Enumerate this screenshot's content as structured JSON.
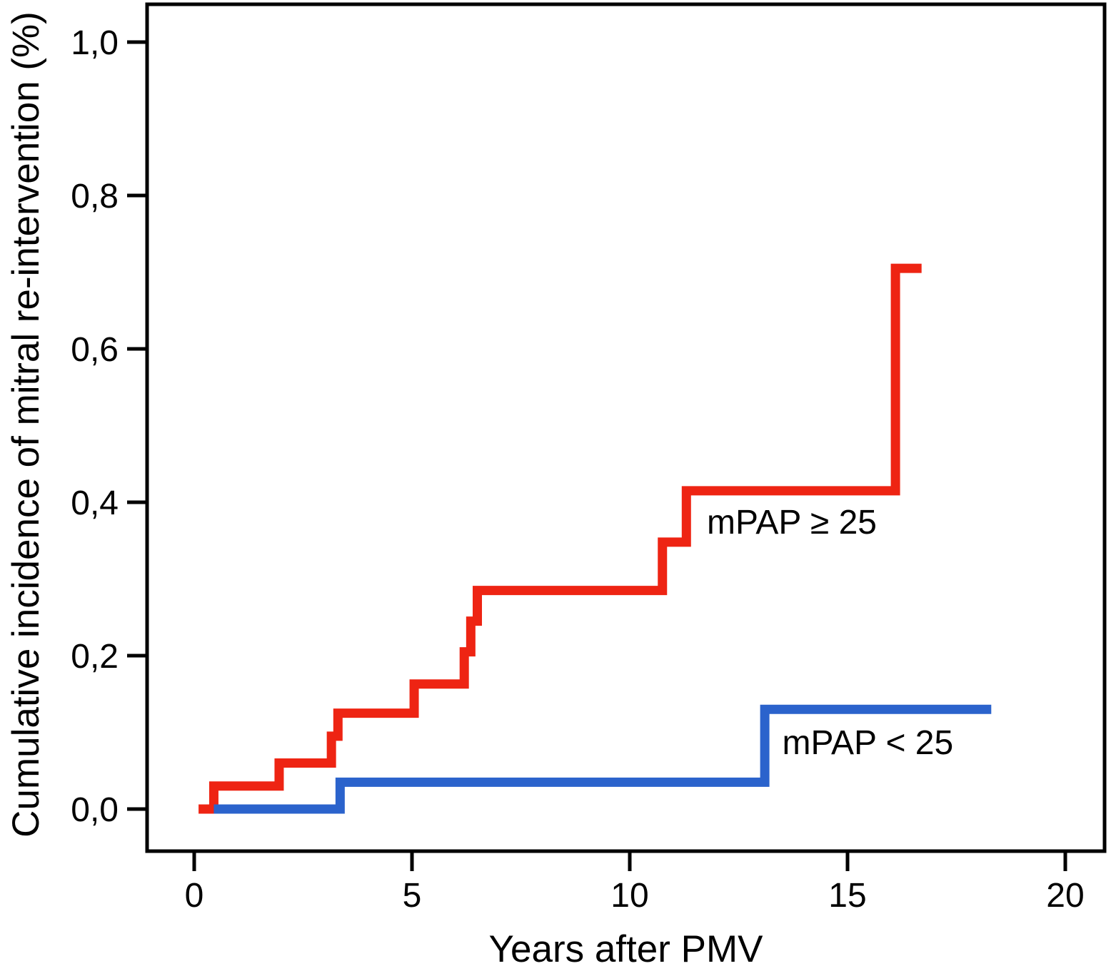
{
  "chart_data": {
    "type": "line",
    "subtype": "step-after",
    "title": "",
    "xlabel": "Years after PMV",
    "ylabel": "Cumulative incidence of mitral re-intervention (%)",
    "xlim": [
      -1.1,
      20.9
    ],
    "ylim": [
      -0.055,
      1.05
    ],
    "grid": false,
    "legend_position": "inline-annotations",
    "axis_color": "#000000",
    "x_ticks": [
      {
        "value": 0,
        "label": "0"
      },
      {
        "value": 5,
        "label": "5"
      },
      {
        "value": 10,
        "label": "10"
      },
      {
        "value": 15,
        "label": "15"
      },
      {
        "value": 20,
        "label": "20"
      }
    ],
    "y_ticks": [
      {
        "value": 0.0,
        "label": "0,0"
      },
      {
        "value": 0.2,
        "label": "0,2"
      },
      {
        "value": 0.4,
        "label": "0,4"
      },
      {
        "value": 0.6,
        "label": "0,6"
      },
      {
        "value": 0.8,
        "label": "0,8"
      },
      {
        "value": 1.0,
        "label": "1,0"
      }
    ],
    "series": [
      {
        "name": "mPAP ≥ 25",
        "color": "#ee2413",
        "points": [
          {
            "x": 0.1,
            "y": 0.0
          },
          {
            "x": 0.45,
            "y": 0.03
          },
          {
            "x": 1.95,
            "y": 0.06
          },
          {
            "x": 3.15,
            "y": 0.095
          },
          {
            "x": 3.3,
            "y": 0.125
          },
          {
            "x": 5.05,
            "y": 0.163
          },
          {
            "x": 6.2,
            "y": 0.205
          },
          {
            "x": 6.35,
            "y": 0.245
          },
          {
            "x": 6.5,
            "y": 0.285
          },
          {
            "x": 10.75,
            "y": 0.348
          },
          {
            "x": 11.3,
            "y": 0.415
          },
          {
            "x": 16.1,
            "y": 0.705
          }
        ],
        "end_x": 16.7,
        "label_anchor": {
          "x": 11.77,
          "y": 0.373
        }
      },
      {
        "name": "mPAP < 25",
        "color": "#2b63cc",
        "points": [
          {
            "x": 0.45,
            "y": 0.0
          },
          {
            "x": 3.35,
            "y": 0.035
          },
          {
            "x": 13.1,
            "y": 0.13
          }
        ],
        "end_x": 18.3,
        "label_anchor": {
          "x": 13.5,
          "y": 0.086
        }
      }
    ]
  }
}
